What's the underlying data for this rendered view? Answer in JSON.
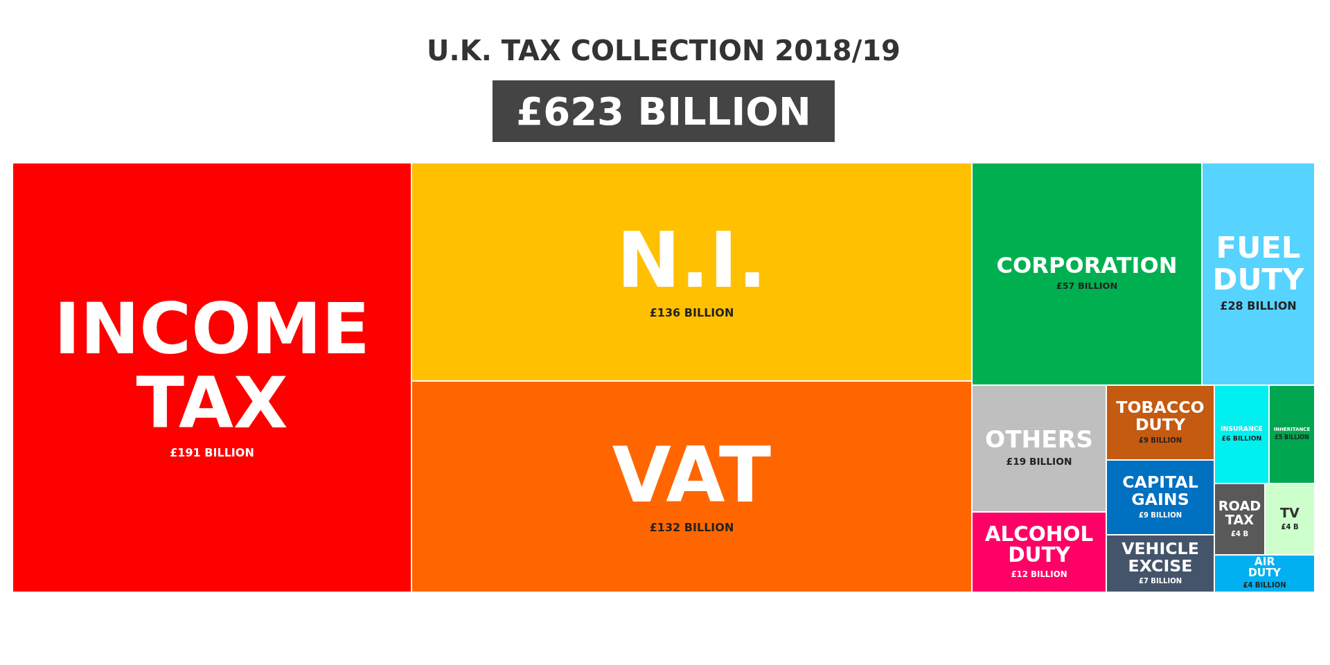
{
  "chart_data": {
    "type": "other",
    "title": "U.K. TAX COLLECTION 2018/19",
    "subtitle": "£623 BILLION",
    "categories": [
      "INCOME TAX",
      "N.I.",
      "VAT",
      "CORPORATION",
      "FUEL DUTY",
      "OTHERS",
      "ALCOHOL DUTY",
      "TOBACCO DUTY",
      "CAPITAL GAINS",
      "VEHICLE EXCISE",
      "INSURANCE",
      "INHERITANCE",
      "ROAD TAX",
      "TV",
      "AIR DUTY"
    ],
    "values": [
      191,
      136,
      132,
      57,
      28,
      19,
      12,
      9,
      9,
      7,
      6,
      5,
      4,
      4,
      4
    ],
    "value_labels": [
      "£191 BILLION",
      "£136 BILLION",
      "£132 BILLION",
      "£57 BILLION",
      "£28 BILLION",
      "£19 BILLION",
      "£12 BILLION",
      "£9 BILLION",
      "£9 BILLION",
      "£7 BILLION",
      "£6 BILLION",
      "£5 BILLION",
      "£4 B",
      "£4 B",
      "£4 BILLION"
    ],
    "colors": [
      "#ff0000",
      "#ffc000",
      "#ff6600",
      "#00b050",
      "#57d3ff",
      "#bfbfbf",
      "#ff0066",
      "#c55a11",
      "#0070c0",
      "#44546a",
      "#00f0f0",
      "#00a650",
      "#595959",
      "#ccffcc",
      "#00b0f0"
    ]
  }
}
